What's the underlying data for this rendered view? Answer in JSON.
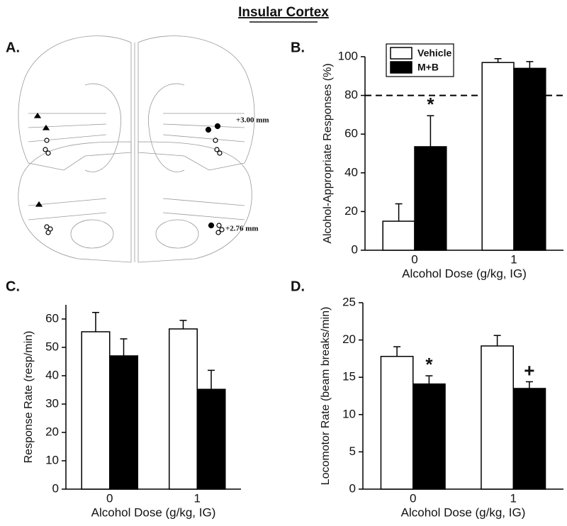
{
  "title": "Insular Cortex",
  "panel_a": {
    "label": "A.",
    "annotations": [
      "+3.00 mm",
      "+2.76 mm"
    ]
  },
  "chart_data": [
    {
      "type": "bar",
      "panel": "B.",
      "y_label": "Alcohol-Appropriate Responses (%)",
      "x_label": "Alcohol Dose (g/kg, IG)",
      "categories": [
        "0",
        "1"
      ],
      "ylim": [
        0,
        100
      ],
      "yticks": [
        0,
        20,
        40,
        60,
        80,
        100
      ],
      "hline": 80,
      "legend": "upper-left",
      "series": [
        {
          "name": "Vehicle",
          "color": "#ffffff",
          "values": [
            15,
            97
          ],
          "errors": [
            9,
            2
          ],
          "annotations": [
            null,
            null
          ]
        },
        {
          "name": "M+B",
          "color": "#000000",
          "values": [
            53.5,
            94
          ],
          "errors": [
            16,
            3.5
          ],
          "annotations": [
            "*",
            null
          ]
        }
      ]
    },
    {
      "type": "bar",
      "panel": "C.",
      "y_label": "Response Rate (resp/min)",
      "x_label": "Alcohol Dose (g/kg, IG)",
      "categories": [
        "0",
        "1"
      ],
      "ylim": [
        0,
        65
      ],
      "yticks": [
        0,
        10,
        20,
        30,
        40,
        50,
        60
      ],
      "series": [
        {
          "name": "Vehicle",
          "color": "#ffffff",
          "values": [
            55.5,
            56.5
          ],
          "errors": [
            6.8,
            3
          ],
          "annotations": [
            null,
            null
          ]
        },
        {
          "name": "M+B",
          "color": "#000000",
          "values": [
            47,
            35.2
          ],
          "errors": [
            6,
            6.7
          ],
          "annotations": [
            null,
            null
          ]
        }
      ]
    },
    {
      "type": "bar",
      "panel": "D.",
      "y_label": "Locomotor Rate (beam breaks/min)",
      "x_label": "Alcohol Dose (g/kg, IG)",
      "categories": [
        "0",
        "1"
      ],
      "ylim": [
        0,
        25
      ],
      "yticks": [
        0,
        5,
        10,
        15,
        20,
        25
      ],
      "series": [
        {
          "name": "Vehicle",
          "color": "#ffffff",
          "values": [
            17.8,
            19.2
          ],
          "errors": [
            1.3,
            1.4
          ],
          "annotations": [
            null,
            null
          ]
        },
        {
          "name": "M+B",
          "color": "#000000",
          "values": [
            14.1,
            13.5
          ],
          "errors": [
            1.1,
            0.9
          ],
          "annotations": [
            "*",
            "+"
          ]
        }
      ]
    }
  ]
}
